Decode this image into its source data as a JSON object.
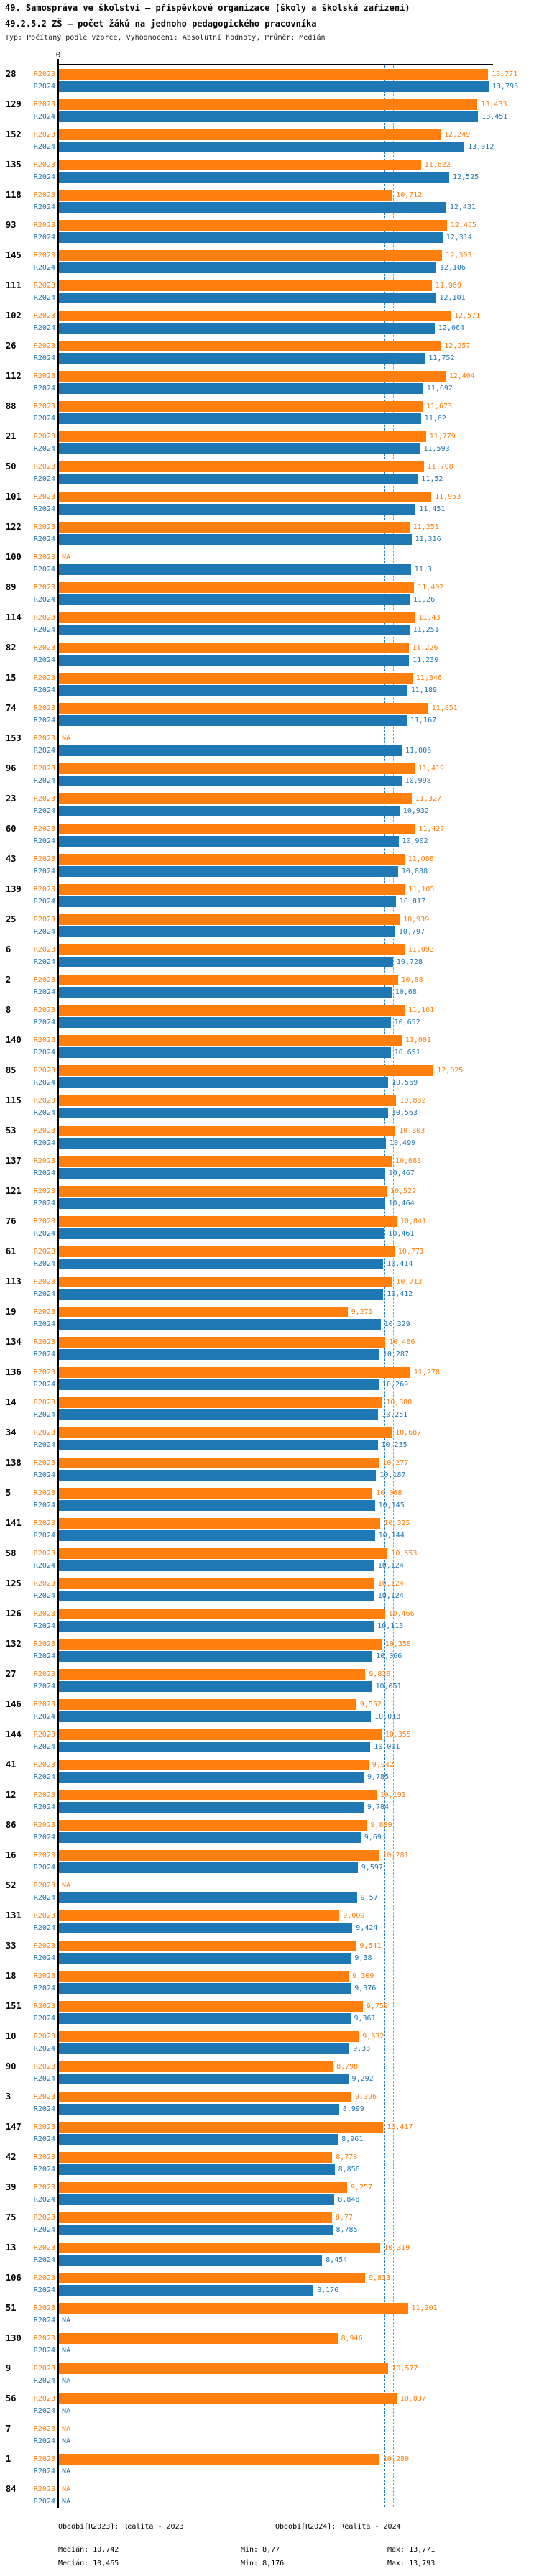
{
  "header": {
    "title": "49. Samospráva ve školství – příspěvkové organizace (školy a školská zařízení)",
    "subtitle": "49.2.5.2 ZŠ – počet žáků na jednoho pedagogického pracovníka",
    "meta": "Typ: Počítaný podle vzorce, Vyhodnocení: Absolutní hodnoty, Průměr: Medián"
  },
  "axis": {
    "zero_label": "0"
  },
  "na_label": "NA",
  "footer": {
    "r2023": {
      "legend": "Období[R2023]: Realita - 2023",
      "median": "Medián: 10,742",
      "min": "Min: 8,77",
      "max": "Max: 13,771"
    },
    "r2024": {
      "legend": "Období[R2024]: Realita - 2024",
      "median": "Medián: 10,465",
      "min": "Min: 8,176",
      "max": "Max: 13,793"
    }
  },
  "chart_data": {
    "type": "bar",
    "orientation": "horizontal",
    "title": "49.2.5.2 ZŠ – počet žáků na jednoho pedagogického pracovníka",
    "xlabel": "",
    "ylabel": "",
    "xlim": [
      0,
      13.94
    ],
    "grid": false,
    "legend_position": "bottom",
    "decimal_separator": ",",
    "categories": [
      "28",
      "129",
      "152",
      "135",
      "118",
      "93",
      "145",
      "111",
      "102",
      "26",
      "112",
      "88",
      "21",
      "50",
      "101",
      "122",
      "100",
      "89",
      "114",
      "82",
      "15",
      "74",
      "153",
      "96",
      "23",
      "60",
      "43",
      "139",
      "25",
      "6",
      "2",
      "8",
      "140",
      "85",
      "115",
      "53",
      "137",
      "121",
      "76",
      "61",
      "113",
      "19",
      "134",
      "136",
      "14",
      "34",
      "138",
      "5",
      "141",
      "58",
      "125",
      "126",
      "132",
      "27",
      "146",
      "144",
      "41",
      "12",
      "86",
      "16",
      "52",
      "131",
      "33",
      "18",
      "151",
      "10",
      "90",
      "3",
      "147",
      "42",
      "39",
      "75",
      "13",
      "106",
      "51",
      "130",
      "9",
      "56",
      "7",
      "1",
      "84"
    ],
    "series": [
      {
        "name": "R2023",
        "color": "#ff7f0e",
        "median": 10.742,
        "min": 8.77,
        "max": 13.771,
        "values": [
          13.771,
          13.433,
          12.249,
          11.622,
          10.712,
          12.455,
          12.303,
          11.969,
          12.571,
          12.257,
          12.404,
          11.673,
          11.779,
          11.708,
          11.953,
          11.251,
          null,
          11.402,
          11.43,
          11.226,
          11.346,
          11.851,
          null,
          11.419,
          11.327,
          11.427,
          11.088,
          11.105,
          10.939,
          11.093,
          10.88,
          11.101,
          11.001,
          12.025,
          10.832,
          10.803,
          10.683,
          10.522,
          10.841,
          10.771,
          10.713,
          9.271,
          10.486,
          11.278,
          10.388,
          10.687,
          10.277,
          10.068,
          10.325,
          10.553,
          10.124,
          10.466,
          10.358,
          9.838,
          9.552,
          10.355,
          9.942,
          10.191,
          9.889,
          10.281,
          null,
          9.009,
          9.541,
          9.309,
          9.759,
          9.632,
          8.798,
          9.396,
          10.417,
          8.778,
          9.257,
          8.77,
          10.319,
          9.833,
          11.201,
          8.946,
          10.577,
          10.837,
          null,
          10.289,
          null
        ]
      },
      {
        "name": "R2024",
        "color": "#1f77b4",
        "median": 10.465,
        "min": 8.176,
        "max": 13.793,
        "values": [
          13.793,
          13.451,
          13.012,
          12.525,
          12.431,
          12.314,
          12.106,
          12.101,
          12.064,
          11.752,
          11.692,
          11.62,
          11.593,
          11.52,
          11.451,
          11.316,
          11.3,
          11.26,
          11.251,
          11.239,
          11.189,
          11.167,
          11.006,
          10.998,
          10.932,
          10.902,
          10.888,
          10.817,
          10.797,
          10.728,
          10.68,
          10.652,
          10.651,
          10.569,
          10.563,
          10.499,
          10.467,
          10.464,
          10.461,
          10.414,
          10.412,
          10.329,
          10.287,
          10.269,
          10.251,
          10.235,
          10.187,
          10.145,
          10.144,
          10.124,
          10.124,
          10.113,
          10.066,
          10.051,
          10.018,
          10.001,
          9.785,
          9.784,
          9.69,
          9.597,
          9.57,
          9.424,
          9.38,
          9.376,
          9.361,
          9.33,
          9.292,
          8.999,
          8.961,
          8.856,
          8.848,
          8.785,
          8.454,
          8.176,
          null,
          null,
          null,
          null,
          null,
          null,
          null
        ]
      }
    ]
  }
}
